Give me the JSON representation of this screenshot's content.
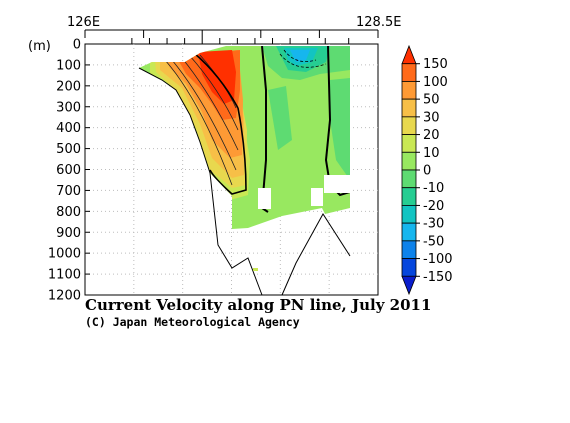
{
  "chart_data": {
    "type": "heatmap",
    "title": "Current Velocity along PN line, July 2011",
    "credit": "(C) Japan Meteorological Agency",
    "x_axis": {
      "tick_labels": [
        "126E",
        "128.5E"
      ],
      "range": [
        126.0,
        128.5
      ]
    },
    "y_axis": {
      "unit_label": "(m)",
      "range": [
        0,
        1200
      ],
      "inverted": true,
      "tick_labels": [
        "0",
        "100",
        "200",
        "300",
        "400",
        "500",
        "600",
        "700",
        "800",
        "900",
        "1000",
        "1100",
        "1200"
      ]
    },
    "grid": "dotted",
    "colorbar": {
      "placement": "right",
      "levels": [
        "150",
        "100",
        "50",
        "30",
        "20",
        "10",
        "0",
        "-10",
        "-20",
        "-30",
        "-50",
        "-100",
        "-150"
      ],
      "bin_colors": [
        "#ff3000",
        "#ff6a1a",
        "#fe9a35",
        "#f7bf47",
        "#e8d84e",
        "#c9e854",
        "#98e860",
        "#5edb72",
        "#26cd92",
        "#12c4c2",
        "#16b6ee",
        "#0d82ea",
        "#0546dd",
        "#0a1dcc"
      ]
    },
    "station_marks": [
      126.4,
      126.55,
      126.7,
      126.85,
      127.0,
      127.15,
      127.3,
      127.45,
      127.6,
      127.75,
      127.9,
      128.05,
      128.25
    ],
    "fields": [
      {
        "lon_range": [
          126.6,
          127.0
        ],
        "depth_range": [
          0,
          300
        ],
        "velocity": 150
      },
      {
        "lon_range": [
          127.4,
          127.8
        ],
        "depth_range": [
          0,
          80
        ],
        "velocity": -30
      },
      {
        "lon_range": [
          127.9,
          128.3
        ],
        "depth_range": [
          600,
          800
        ],
        "velocity": 0
      }
    ]
  }
}
